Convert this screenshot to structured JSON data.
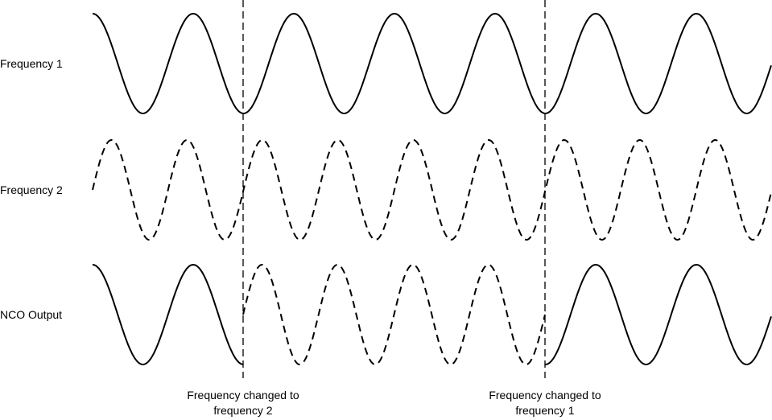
{
  "rows": [
    {
      "label": "Frequency 1"
    },
    {
      "label": "Frequency 2"
    },
    {
      "label": "NCO Output"
    }
  ],
  "annotations": [
    {
      "line1": "Frequency changed to",
      "line2": "frequency 2"
    },
    {
      "line1": "Frequency changed to",
      "line2": "frequency 1"
    }
  ],
  "styles": {
    "frequency_1": "solid",
    "frequency_2": "dashed",
    "line_color": "#000000"
  }
}
